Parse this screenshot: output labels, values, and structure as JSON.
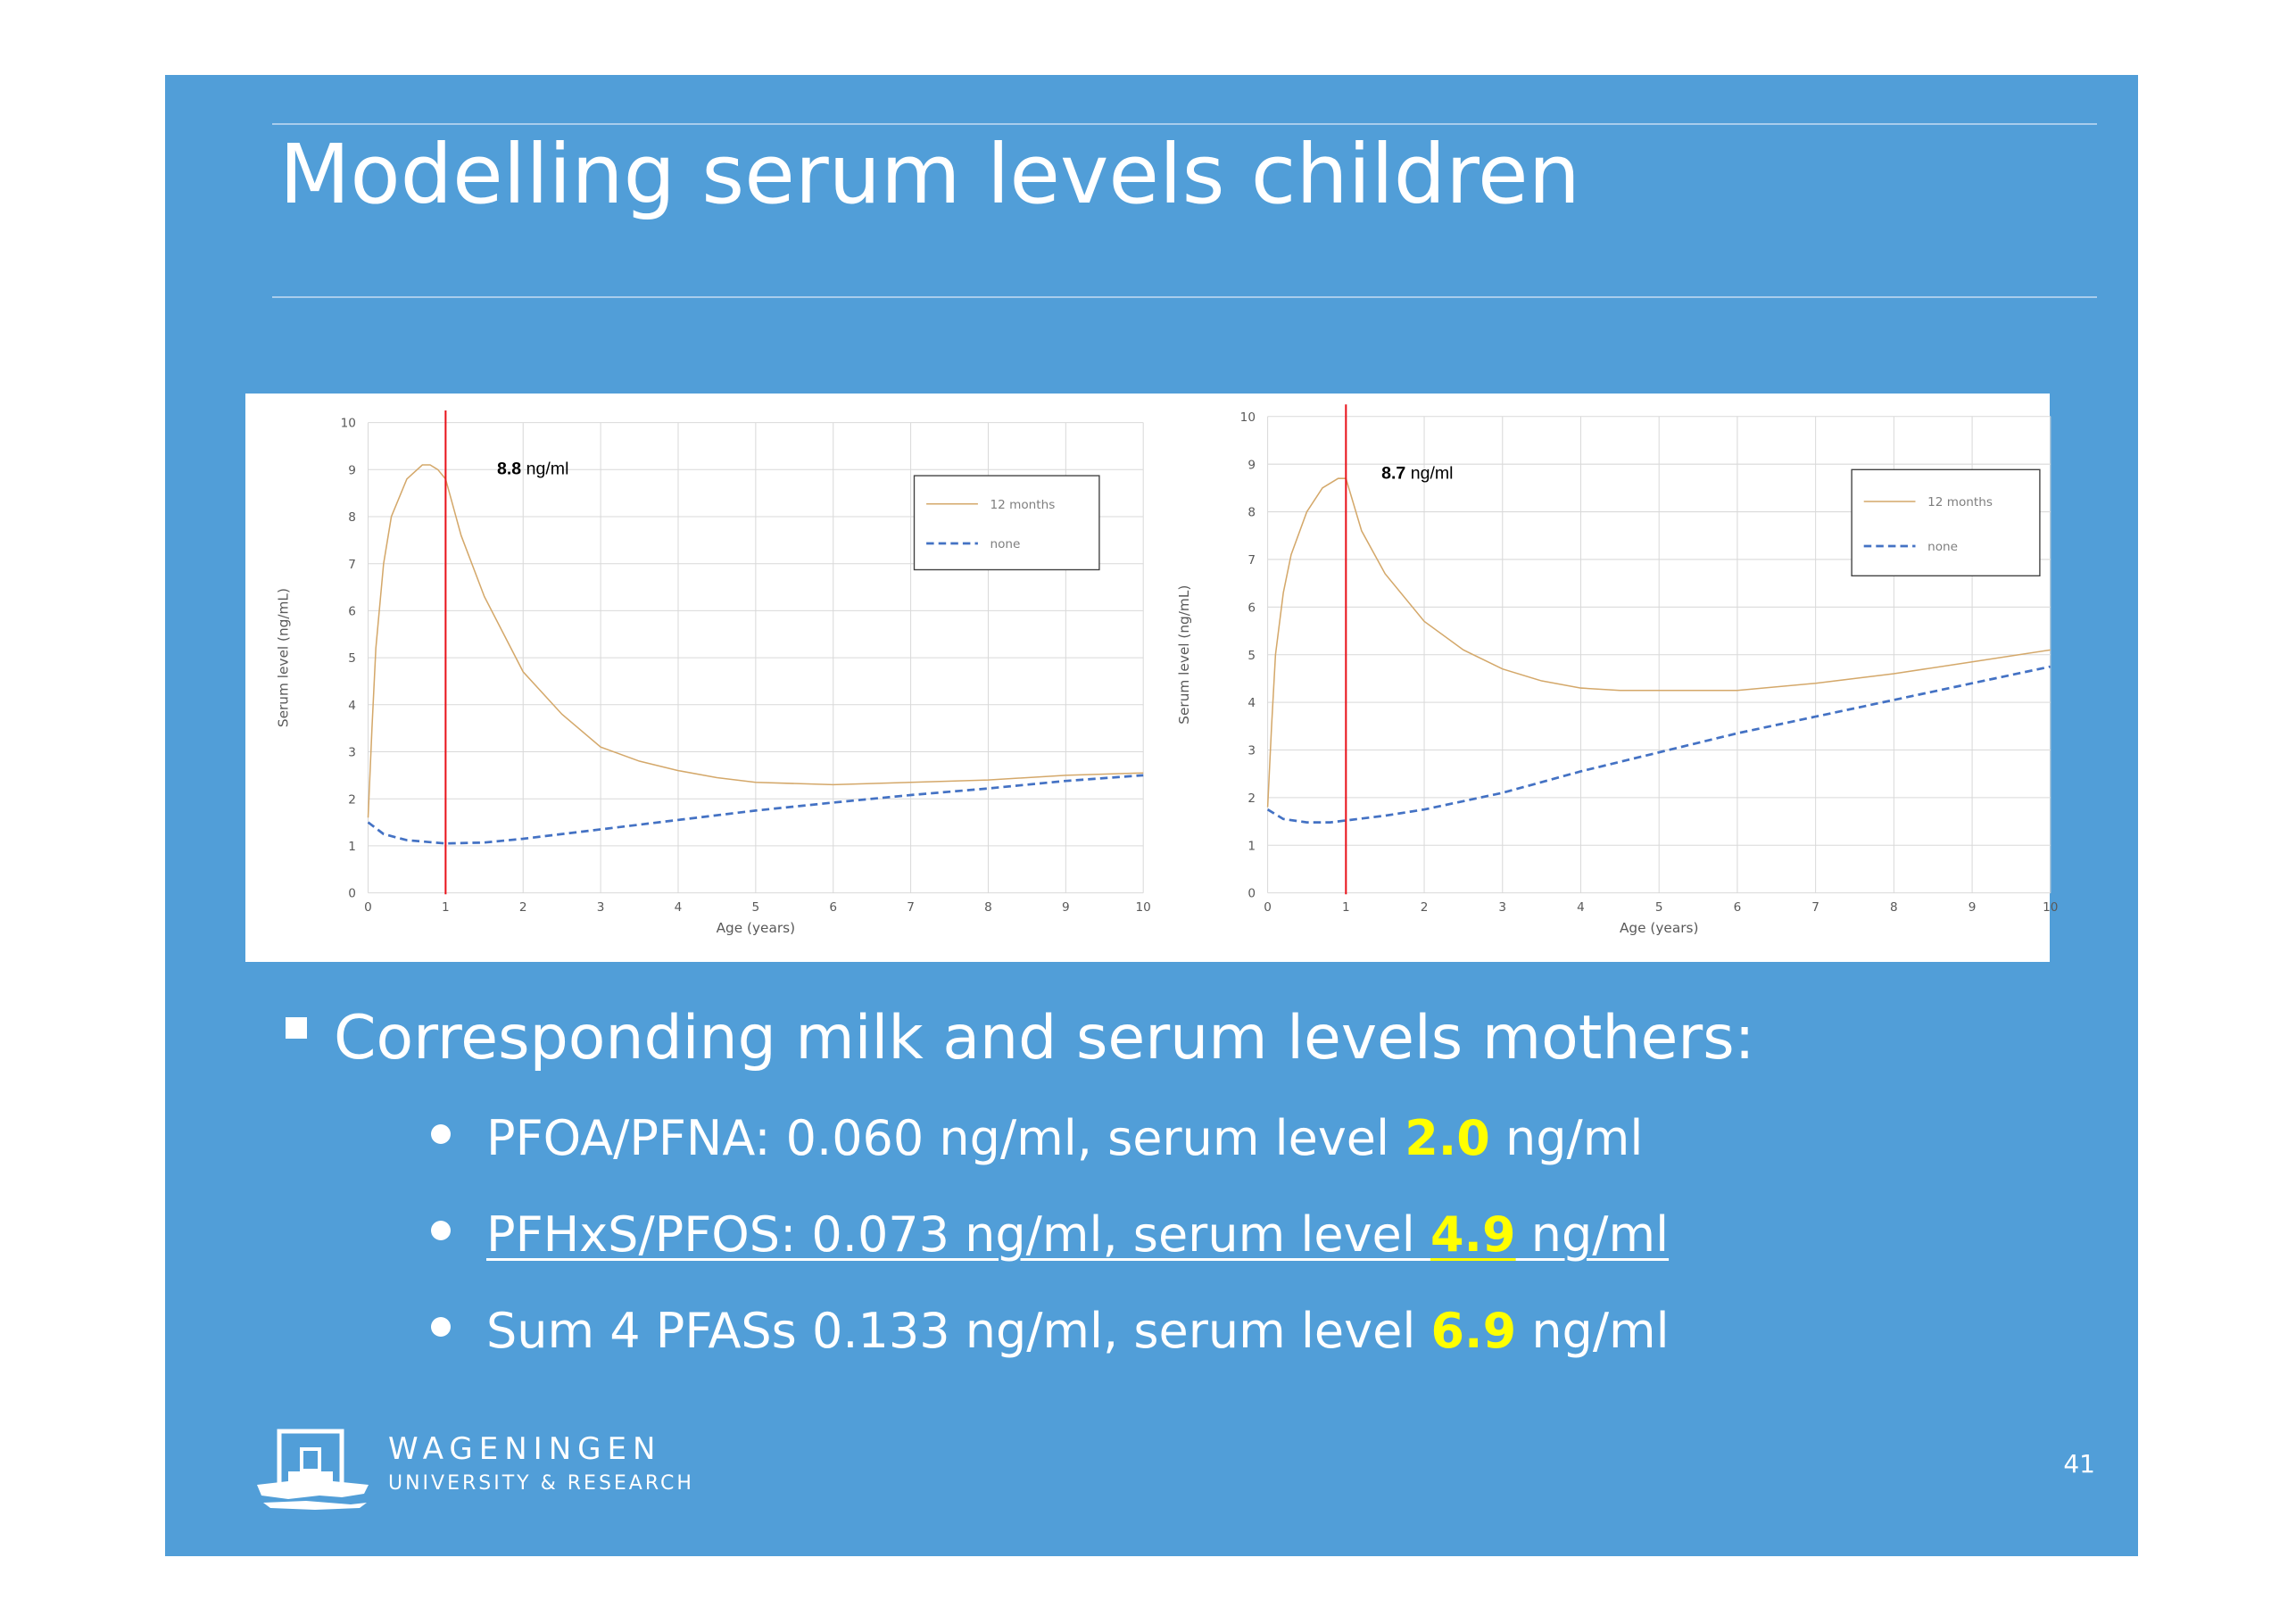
{
  "slide": {
    "title": "Modelling serum levels children",
    "page_number": "41",
    "bullet_main": "Corresponding milk and serum levels mothers:",
    "sub_bullets": [
      {
        "prefix": "PFOA/PFNA: 0.060 ng/ml, serum level ",
        "highlight": "2.0",
        "suffix": " ng/ml"
      },
      {
        "prefix": "PFHxS/PFOS: 0.073 ng/ml, serum level ",
        "highlight": "4.9",
        "suffix": " ng/ml"
      },
      {
        "prefix": "Sum 4 PFASs 0.133 ng/ml, serum level ",
        "highlight": "6.9",
        "suffix": " ng/ml"
      }
    ],
    "logo": {
      "line1": "WAGENINGEN",
      "line2": "UNIVERSITY & RESEARCH"
    },
    "colors": {
      "background": "#519ed8",
      "highlight": "#ffff00",
      "series_12_months": "#d4a86a",
      "series_none": "#4472c4",
      "marker_line": "#e8141c"
    }
  },
  "chart_data": [
    {
      "type": "line",
      "xlabel": "Age (years)",
      "ylabel": "Serum level (ng/mL)",
      "xlim": [
        0,
        10
      ],
      "ylim": [
        0,
        10
      ],
      "xticks": [
        "0",
        "1",
        "2",
        "3",
        "4",
        "5",
        "6",
        "7",
        "8",
        "9",
        "10"
      ],
      "yticks": [
        "0",
        "1",
        "2",
        "3",
        "4",
        "5",
        "6",
        "7",
        "8",
        "9",
        "10"
      ],
      "grid": true,
      "legend_position": "top-right",
      "annotation": {
        "bold": "8.8",
        "text": " ng/ml",
        "x": 1
      },
      "series": [
        {
          "name": "12 months",
          "style": "solid",
          "x": [
            0,
            0.05,
            0.1,
            0.2,
            0.3,
            0.5,
            0.7,
            0.8,
            0.9,
            1,
            1.2,
            1.5,
            2,
            2.5,
            3,
            3.5,
            4,
            4.5,
            5,
            6,
            7,
            8,
            9,
            10
          ],
          "y": [
            1.6,
            3.5,
            5.2,
            7.0,
            8.0,
            8.8,
            9.1,
            9.1,
            9.0,
            8.8,
            7.6,
            6.3,
            4.7,
            3.8,
            3.1,
            2.8,
            2.6,
            2.45,
            2.35,
            2.3,
            2.35,
            2.4,
            2.5,
            2.55
          ]
        },
        {
          "name": "none",
          "style": "dashed",
          "x": [
            0,
            0.2,
            0.5,
            1,
            1.5,
            2,
            3,
            4,
            5,
            6,
            7,
            8,
            9,
            10
          ],
          "y": [
            1.5,
            1.25,
            1.12,
            1.05,
            1.07,
            1.15,
            1.35,
            1.55,
            1.75,
            1.92,
            2.08,
            2.22,
            2.38,
            2.5
          ]
        }
      ]
    },
    {
      "type": "line",
      "xlabel": "Age (years)",
      "ylabel": "Serum level (ng/mL)",
      "xlim": [
        0,
        10
      ],
      "ylim": [
        0,
        10
      ],
      "xticks": [
        "0",
        "1",
        "2",
        "3",
        "4",
        "5",
        "6",
        "7",
        "8",
        "9",
        "10"
      ],
      "yticks": [
        "0",
        "1",
        "2",
        "3",
        "4",
        "5",
        "6",
        "7",
        "8",
        "9",
        "10"
      ],
      "grid": true,
      "legend_position": "top-right",
      "annotation": {
        "bold": "8.7",
        "text": " ng/ml",
        "x": 1
      },
      "series": [
        {
          "name": "12 months",
          "style": "solid",
          "x": [
            0,
            0.05,
            0.1,
            0.2,
            0.3,
            0.5,
            0.7,
            0.9,
            1,
            1.2,
            1.5,
            2,
            2.5,
            3,
            3.5,
            4,
            4.5,
            5,
            6,
            7,
            8,
            9,
            10
          ],
          "y": [
            1.8,
            3.5,
            5.0,
            6.3,
            7.1,
            8.0,
            8.5,
            8.7,
            8.7,
            7.6,
            6.7,
            5.7,
            5.1,
            4.7,
            4.45,
            4.3,
            4.25,
            4.25,
            4.25,
            4.4,
            4.6,
            4.85,
            5.1
          ]
        },
        {
          "name": "none",
          "style": "dashed",
          "x": [
            0,
            0.2,
            0.5,
            0.8,
            1,
            1.5,
            2,
            3,
            4,
            5,
            6,
            7,
            8,
            9,
            10
          ],
          "y": [
            1.75,
            1.55,
            1.48,
            1.48,
            1.52,
            1.62,
            1.75,
            2.1,
            2.55,
            2.95,
            3.35,
            3.7,
            4.05,
            4.4,
            4.75
          ]
        }
      ]
    }
  ]
}
